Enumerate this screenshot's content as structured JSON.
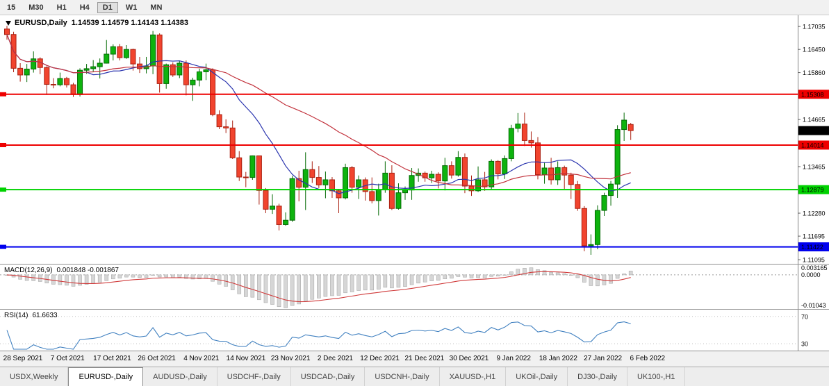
{
  "toolbar": {
    "timeframes": [
      "15",
      "M30",
      "H1",
      "H4",
      "D1",
      "W1",
      "MN"
    ],
    "active_timeframe": "D1"
  },
  "chart_header": {
    "symbol": "EURUSD,Daily",
    "ohlc": "1.14539 1.14579 1.14143 1.14383"
  },
  "chart_data": {
    "type": "candlestick",
    "symbol": "EURUSD",
    "timeframe": "Daily",
    "current_ohlc": {
      "open": 1.14539,
      "high": 1.14579,
      "low": 1.14143,
      "close": 1.14383
    },
    "y_axis": {
      "min": 1.1099,
      "max": 1.1732,
      "ticks": [
        {
          "label": "1.17035",
          "value": 1.17035
        },
        {
          "label": "1.16450",
          "value": 1.1645
        },
        {
          "label": "1.15860",
          "value": 1.1586
        },
        {
          "label": "1.14665",
          "value": 1.14665
        },
        {
          "label": "1.13465",
          "value": 1.13465
        },
        {
          "label": "1.12280",
          "value": 1.1228
        },
        {
          "label": "1.11695",
          "value": 1.11695
        },
        {
          "label": "1.11095",
          "value": 1.11095
        }
      ]
    },
    "x_labels": [
      "28 Sep 2021",
      "7 Oct 2021",
      "17 Oct 2021",
      "26 Oct 2021",
      "4 Nov 2021",
      "14 Nov 2021",
      "23 Nov 2021",
      "2 Dec 2021",
      "12 Dec 2021",
      "21 Dec 2021",
      "30 Dec 2021",
      "9 Jan 2022",
      "18 Jan 2022",
      "27 Jan 2022",
      "6 Feb 2022"
    ],
    "candles": [
      [
        1.1697,
        1.1705,
        1.167,
        1.1683
      ],
      [
        1.1683,
        1.169,
        1.1587,
        1.1597
      ],
      [
        1.1597,
        1.161,
        1.1563,
        1.158
      ],
      [
        1.158,
        1.1608,
        1.1562,
        1.1595
      ],
      [
        1.1595,
        1.164,
        1.1586,
        1.1621
      ],
      [
        1.1621,
        1.1625,
        1.1582,
        1.1599
      ],
      [
        1.1599,
        1.1602,
        1.1529,
        1.1556
      ],
      [
        1.1556,
        1.1572,
        1.1546,
        1.1555
      ],
      [
        1.1555,
        1.1586,
        1.1551,
        1.1571
      ],
      [
        1.1571,
        1.1575,
        1.1548,
        1.1555
      ],
      [
        1.1555,
        1.156,
        1.1524,
        1.153
      ],
      [
        1.153,
        1.1597,
        1.1525,
        1.1592
      ],
      [
        1.1592,
        1.1608,
        1.1583,
        1.1596
      ],
      [
        1.1596,
        1.1618,
        1.1588,
        1.1601
      ],
      [
        1.1601,
        1.1622,
        1.1571,
        1.161
      ],
      [
        1.161,
        1.1669,
        1.1609,
        1.1633
      ],
      [
        1.1633,
        1.1658,
        1.1617,
        1.1652
      ],
      [
        1.1652,
        1.1659,
        1.1617,
        1.1624
      ],
      [
        1.1624,
        1.1656,
        1.1621,
        1.1645
      ],
      [
        1.1645,
        1.1647,
        1.1591,
        1.1608
      ],
      [
        1.1608,
        1.1626,
        1.1585,
        1.1596
      ],
      [
        1.1596,
        1.1626,
        1.1584,
        1.1603
      ],
      [
        1.1603,
        1.1692,
        1.1582,
        1.1682
      ],
      [
        1.1682,
        1.1686,
        1.1535,
        1.1558
      ],
      [
        1.1558,
        1.1609,
        1.1545,
        1.1606
      ],
      [
        1.1606,
        1.1612,
        1.1575,
        1.158
      ],
      [
        1.158,
        1.1616,
        1.1572,
        1.161
      ],
      [
        1.161,
        1.1617,
        1.1528,
        1.1555
      ],
      [
        1.1555,
        1.1573,
        1.1514,
        1.1567
      ],
      [
        1.1567,
        1.1596,
        1.1551,
        1.1588
      ],
      [
        1.1588,
        1.1609,
        1.1567,
        1.1593
      ],
      [
        1.1593,
        1.1597,
        1.1475,
        1.1479
      ],
      [
        1.1479,
        1.149,
        1.1442,
        1.1448
      ],
      [
        1.1448,
        1.1467,
        1.1432,
        1.1445
      ],
      [
        1.1445,
        1.1464,
        1.1366,
        1.1369
      ],
      [
        1.1369,
        1.1386,
        1.131,
        1.132
      ],
      [
        1.132,
        1.1333,
        1.1294,
        1.1319
      ],
      [
        1.1319,
        1.1375,
        1.1313,
        1.1374
      ],
      [
        1.1374,
        1.1374,
        1.125,
        1.1286
      ],
      [
        1.1286,
        1.1292,
        1.1228,
        1.1238
      ],
      [
        1.1238,
        1.1276,
        1.1226,
        1.1246
      ],
      [
        1.1246,
        1.1252,
        1.1184,
        1.1199
      ],
      [
        1.1199,
        1.123,
        1.1196,
        1.121
      ],
      [
        1.121,
        1.1323,
        1.1206,
        1.1316
      ],
      [
        1.1316,
        1.1336,
        1.1258,
        1.1294
      ],
      [
        1.1294,
        1.1383,
        1.1236,
        1.1339
      ],
      [
        1.1339,
        1.136,
        1.1305,
        1.1319
      ],
      [
        1.1319,
        1.1348,
        1.1292,
        1.13
      ],
      [
        1.13,
        1.1334,
        1.1266,
        1.1313
      ],
      [
        1.1313,
        1.132,
        1.1267,
        1.1285
      ],
      [
        1.1285,
        1.129,
        1.1228,
        1.1267
      ],
      [
        1.1267,
        1.1354,
        1.1263,
        1.1344
      ],
      [
        1.1344,
        1.1348,
        1.128,
        1.1294
      ],
      [
        1.1294,
        1.1324,
        1.1264,
        1.1313
      ],
      [
        1.1313,
        1.1319,
        1.126,
        1.1283
      ],
      [
        1.1283,
        1.1319,
        1.1253,
        1.126
      ],
      [
        1.126,
        1.1303,
        1.1222,
        1.1288
      ],
      [
        1.1288,
        1.136,
        1.128,
        1.133
      ],
      [
        1.133,
        1.135,
        1.1236,
        1.124
      ],
      [
        1.124,
        1.1304,
        1.1237,
        1.128
      ],
      [
        1.128,
        1.1296,
        1.1262,
        1.1287
      ],
      [
        1.1287,
        1.1343,
        1.1262,
        1.1324
      ],
      [
        1.1324,
        1.1342,
        1.1308,
        1.133
      ],
      [
        1.133,
        1.1334,
        1.1308,
        1.1318
      ],
      [
        1.1318,
        1.1336,
        1.1305,
        1.1327
      ],
      [
        1.1327,
        1.1332,
        1.1291,
        1.131
      ],
      [
        1.131,
        1.1369,
        1.1286,
        1.1349
      ],
      [
        1.1349,
        1.136,
        1.1316,
        1.1325
      ],
      [
        1.1325,
        1.1386,
        1.1321,
        1.137
      ],
      [
        1.137,
        1.138,
        1.1279,
        1.1297
      ],
      [
        1.1297,
        1.1324,
        1.1272,
        1.1285
      ],
      [
        1.1285,
        1.1347,
        1.1282,
        1.1313
      ],
      [
        1.1313,
        1.1333,
        1.1285,
        1.1295
      ],
      [
        1.1295,
        1.1365,
        1.1288,
        1.136
      ],
      [
        1.136,
        1.1363,
        1.1314,
        1.1328
      ],
      [
        1.1328,
        1.1375,
        1.1315,
        1.1367
      ],
      [
        1.1367,
        1.1453,
        1.136,
        1.1444
      ],
      [
        1.1444,
        1.1483,
        1.1434,
        1.1455
      ],
      [
        1.1455,
        1.1484,
        1.1399,
        1.1413
      ],
      [
        1.1413,
        1.1436,
        1.1395,
        1.1407
      ],
      [
        1.1407,
        1.1422,
        1.1314,
        1.1326
      ],
      [
        1.1326,
        1.1358,
        1.1303,
        1.1343
      ],
      [
        1.1343,
        1.1369,
        1.1301,
        1.1313
      ],
      [
        1.1313,
        1.136,
        1.13,
        1.1344
      ],
      [
        1.1344,
        1.1349,
        1.129,
        1.1325
      ],
      [
        1.1325,
        1.1331,
        1.1264,
        1.1301
      ],
      [
        1.1301,
        1.131,
        1.1234,
        1.124
      ],
      [
        1.124,
        1.1246,
        1.1131,
        1.1145
      ],
      [
        1.1145,
        1.1174,
        1.1122,
        1.1148
      ],
      [
        1.1148,
        1.1248,
        1.1136,
        1.1235
      ],
      [
        1.1235,
        1.128,
        1.1221,
        1.1273
      ],
      [
        1.1273,
        1.131,
        1.1247,
        1.1302
      ],
      [
        1.1302,
        1.1452,
        1.1267,
        1.1441
      ],
      [
        1.1441,
        1.1484,
        1.1412,
        1.1465
      ],
      [
        1.14539,
        1.14579,
        1.14143,
        1.14383
      ]
    ],
    "moving_averages": [
      {
        "name": "ma-fast-line",
        "period": 13,
        "color": "#2B35AF"
      },
      {
        "name": "ma-slow-line",
        "period": 34,
        "color": "#C2323C"
      }
    ],
    "horizontal_lines": [
      {
        "price": 1.15308,
        "label": "1.15308",
        "color": "#EE0000",
        "width": 2
      },
      {
        "price": 1.14014,
        "label": "1.14014",
        "color": "#EE0000",
        "width": 2
      },
      {
        "price": 1.12879,
        "label": "1.12879",
        "color": "#00D200",
        "width": 2
      },
      {
        "price": 1.11422,
        "label": "1.11422",
        "color": "#0000EE",
        "width": 2
      }
    ],
    "current_price_tag": {
      "price": 1.14383,
      "label": "1.14383",
      "bg": "#000000"
    },
    "colors": {
      "up": "#0EB30E",
      "up_border": "#036A03",
      "down": "#F1442E",
      "down_border": "#AA2011",
      "background": "#FFFFFF",
      "axis_line": "#808080"
    },
    "macd": {
      "name": "MACD(12,26,9)",
      "values": "0.001848 -0.001867",
      "fast": 12,
      "slow": 26,
      "signal": 9,
      "max": 0.003165,
      "min": -0.01043,
      "axis_labels": [
        "0.003165",
        "0.0000",
        "-0.01043"
      ],
      "hist_color": "#D6D6D6",
      "hist_border": "#ABABAB",
      "signal_color": "#D03A3A",
      "zero_color": "#9A9A9A"
    },
    "rsi": {
      "name": "RSI(14)",
      "value": "61.6633",
      "period": 14,
      "range_min": 20,
      "range_max": 80,
      "levels": [
        {
          "label": "70",
          "value": 70
        },
        {
          "label": "30",
          "value": 30
        }
      ],
      "line_color": "#4080C0",
      "level_color": "#BEBEBE"
    }
  },
  "tabs": [
    {
      "label": "USDX,Weekly",
      "active": false
    },
    {
      "label": "EURUSD-,Daily",
      "active": true
    },
    {
      "label": "AUDUSD-,Daily",
      "active": false
    },
    {
      "label": "USDCHF-,Daily",
      "active": false
    },
    {
      "label": "USDCAD-,Daily",
      "active": false
    },
    {
      "label": "USDCNH-,Daily",
      "active": false
    },
    {
      "label": "XAUUSD-,H1",
      "active": false
    },
    {
      "label": "UKOil-,Daily",
      "active": false
    },
    {
      "label": "DJ30-,Daily",
      "active": false
    },
    {
      "label": "UK100-,H1",
      "active": false
    }
  ]
}
